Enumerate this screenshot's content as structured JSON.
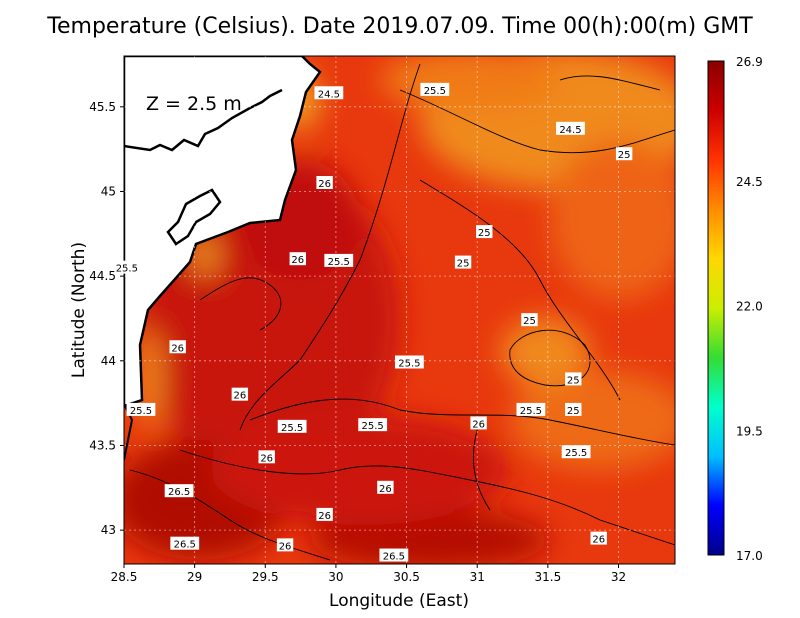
{
  "title": "Temperature (Celsius). Date 2019.07.09. Time 00(h):00(m) GMT",
  "depth_label": "Z = 2.5 m",
  "colors": {
    "coast": "#000000",
    "land": "#ffffff",
    "warm": "#d4180c",
    "hot": "#b80c06",
    "mild": "#ee5a10",
    "cool": "#f2a020"
  },
  "chart_data": {
    "type": "heatmap",
    "xlabel": "Longitude (East)",
    "ylabel": "Latitude (North)",
    "xlim": [
      28.5,
      32.4
    ],
    "ylim": [
      42.8,
      45.8
    ],
    "x_ticks": [
      "28.5",
      "29",
      "29.5",
      "30",
      "30.5",
      "31",
      "31.5",
      "32"
    ],
    "x_tick_values": [
      28.5,
      29,
      29.5,
      30,
      30.5,
      31,
      31.5,
      32
    ],
    "y_ticks": [
      "43",
      "43.5",
      "44",
      "44.5",
      "45",
      "45.5"
    ],
    "y_tick_values": [
      43,
      43.5,
      44,
      44.5,
      45,
      45.5
    ],
    "grid": true,
    "colorbar": {
      "min": 17.0,
      "max": 26.9,
      "labels": [
        "26.9",
        "24.5",
        "22.0",
        "19.5",
        "17.0"
      ],
      "label_values": [
        26.9,
        24.5,
        22.0,
        19.5,
        17.0
      ],
      "stops": [
        "#00008b",
        "#0000ff",
        "#00bfff",
        "#00ffcc",
        "#33dd33",
        "#ccee00",
        "#ffd700",
        "#ff8c00",
        "#ff3300",
        "#cc0000",
        "#8b0000"
      ]
    },
    "contour_labels": [
      {
        "text": "24.5",
        "lon": 29.95,
        "lat": 45.58
      },
      {
        "text": "25.5",
        "lon": 30.7,
        "lat": 45.6
      },
      {
        "text": "24.5",
        "lon": 31.66,
        "lat": 45.37
      },
      {
        "text": "25",
        "lon": 32.04,
        "lat": 45.22
      },
      {
        "text": "26",
        "lon": 29.92,
        "lat": 45.05
      },
      {
        "text": "25",
        "lon": 31.05,
        "lat": 44.76
      },
      {
        "text": "25.5",
        "lon": 28.52,
        "lat": 44.55
      },
      {
        "text": "26",
        "lon": 29.73,
        "lat": 44.6
      },
      {
        "text": "25.5",
        "lon": 30.02,
        "lat": 44.59
      },
      {
        "text": "25",
        "lon": 30.9,
        "lat": 44.58
      },
      {
        "text": "25",
        "lon": 31.37,
        "lat": 44.24
      },
      {
        "text": "26",
        "lon": 28.88,
        "lat": 44.08
      },
      {
        "text": "25.5",
        "lon": 30.52,
        "lat": 43.99
      },
      {
        "text": "25",
        "lon": 31.68,
        "lat": 43.89
      },
      {
        "text": "26",
        "lon": 29.32,
        "lat": 43.8
      },
      {
        "text": "25.5",
        "lon": 28.62,
        "lat": 43.71
      },
      {
        "text": "25.5",
        "lon": 31.38,
        "lat": 43.71
      },
      {
        "text": "25",
        "lon": 31.68,
        "lat": 43.71
      },
      {
        "text": "26",
        "lon": 31.01,
        "lat": 43.63
      },
      {
        "text": "25.5",
        "lon": 29.69,
        "lat": 43.61
      },
      {
        "text": "25.5",
        "lon": 30.26,
        "lat": 43.62
      },
      {
        "text": "25.5",
        "lon": 31.7,
        "lat": 43.46
      },
      {
        "text": "26",
        "lon": 29.51,
        "lat": 43.43
      },
      {
        "text": "26.5",
        "lon": 28.89,
        "lat": 43.23
      },
      {
        "text": "26",
        "lon": 30.35,
        "lat": 43.25
      },
      {
        "text": "26",
        "lon": 29.92,
        "lat": 43.09
      },
      {
        "text": "26",
        "lon": 31.86,
        "lat": 42.95
      },
      {
        "text": "26.5",
        "lon": 28.93,
        "lat": 42.92
      },
      {
        "text": "26",
        "lon": 29.64,
        "lat": 42.91
      },
      {
        "text": "26.5",
        "lon": 30.41,
        "lat": 42.85
      }
    ]
  }
}
